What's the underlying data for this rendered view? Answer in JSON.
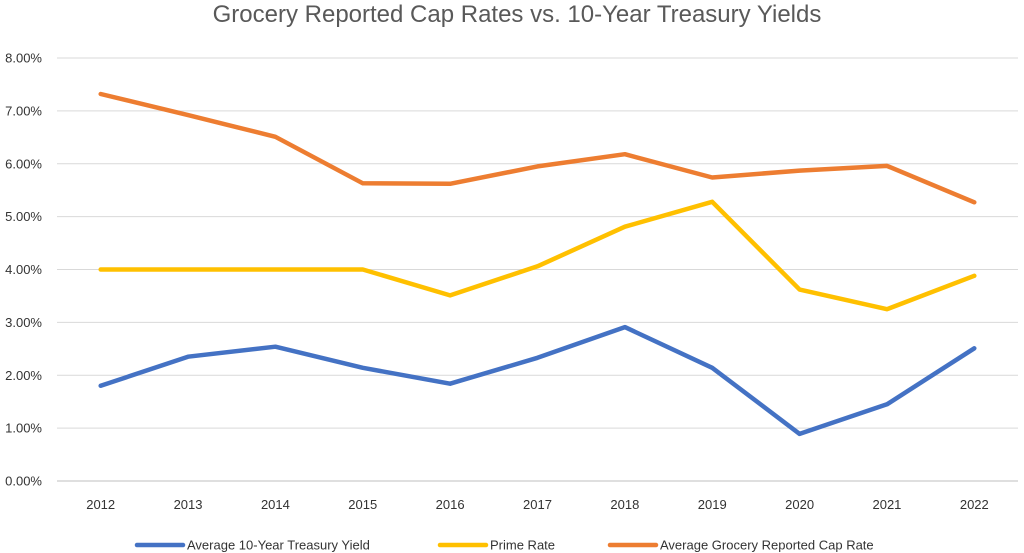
{
  "chart_data": {
    "type": "line",
    "title": "Grocery Reported Cap Rates vs. 10-Year Treasury Yields",
    "xlabel": "",
    "ylabel": "",
    "categories": [
      "2012",
      "2013",
      "2014",
      "2015",
      "2016",
      "2017",
      "2018",
      "2019",
      "2020",
      "2021",
      "2022"
    ],
    "ylim": [
      0,
      8
    ],
    "yticks": [
      "0.00%",
      "1.00%",
      "2.00%",
      "3.00%",
      "4.00%",
      "5.00%",
      "6.00%",
      "7.00%",
      "8.00%"
    ],
    "grid": true,
    "legend_position": "bottom",
    "series": [
      {
        "name": "Average 10-Year Treasury Yield",
        "color": "#4472c4",
        "values": [
          1.8,
          2.35,
          2.54,
          2.14,
          1.84,
          2.33,
          2.91,
          2.14,
          0.89,
          1.45,
          2.51
        ]
      },
      {
        "name": "Prime Rate",
        "color": "#ffc000",
        "values": [
          4.0,
          4.0,
          4.0,
          4.0,
          3.51,
          4.06,
          4.81,
          5.28,
          3.62,
          3.25,
          3.88
        ]
      },
      {
        "name": "Average Grocery Reported Cap Rate",
        "color": "#ed7d31",
        "values": [
          7.32,
          6.92,
          6.51,
          5.63,
          5.62,
          5.95,
          6.18,
          5.74,
          5.87,
          5.96,
          5.27
        ]
      }
    ]
  }
}
